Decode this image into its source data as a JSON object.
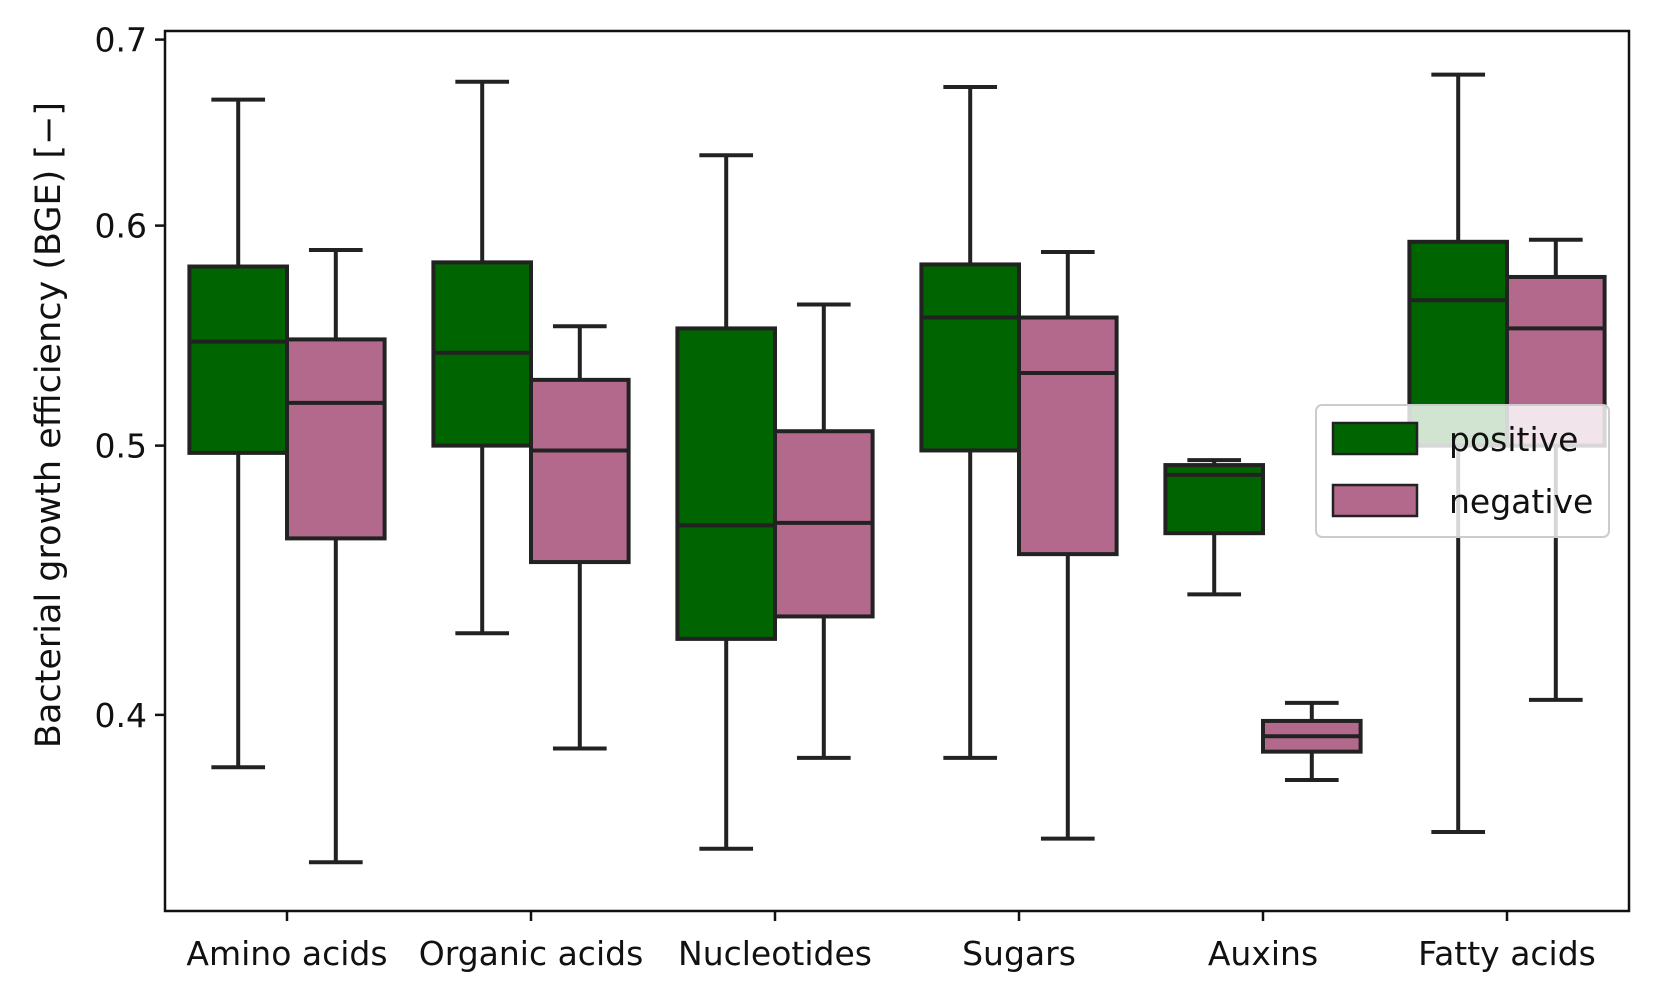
{
  "chart_data": {
    "type": "box",
    "title": "",
    "xlabel": "",
    "ylabel": "Bacterial growth efficiency (BGE) [−]",
    "yscale": "log",
    "ylim": [
      0.34,
      0.705
    ],
    "yticks": [
      0.4,
      0.5,
      0.6,
      0.7
    ],
    "ytick_labels": [
      "0.4",
      "0.5",
      "0.6",
      "0.7"
    ],
    "categories": [
      "Amino acids",
      "Organic acids",
      "Nucleotides",
      "Sugars",
      "Auxins",
      "Fatty acids"
    ],
    "legend": {
      "position": "right",
      "entries": [
        "positive",
        "negative"
      ]
    },
    "series": [
      {
        "name": "positive",
        "color": "#006400",
        "boxes": [
          {
            "whislo": 0.383,
            "q1": 0.497,
            "median": 0.545,
            "q3": 0.58,
            "whishi": 0.666
          },
          {
            "whislo": 0.428,
            "q1": 0.5,
            "median": 0.54,
            "q3": 0.582,
            "whishi": 0.676
          },
          {
            "whislo": 0.358,
            "q1": 0.426,
            "median": 0.468,
            "q3": 0.551,
            "whishi": 0.636
          },
          {
            "whislo": 0.386,
            "q1": 0.498,
            "median": 0.556,
            "q3": 0.581,
            "whishi": 0.673
          },
          {
            "whislo": 0.442,
            "q1": 0.465,
            "median": 0.488,
            "q3": 0.492,
            "whishi": 0.494
          },
          {
            "whislo": 0.363,
            "q1": 0.5,
            "median": 0.564,
            "q3": 0.592,
            "whishi": 0.68
          }
        ]
      },
      {
        "name": "negative",
        "color": "#b3698b",
        "boxes": [
          {
            "whislo": 0.354,
            "q1": 0.463,
            "median": 0.518,
            "q3": 0.546,
            "whishi": 0.588
          },
          {
            "whislo": 0.389,
            "q1": 0.454,
            "median": 0.498,
            "q3": 0.528,
            "whishi": 0.552
          },
          {
            "whislo": 0.386,
            "q1": 0.434,
            "median": 0.469,
            "q3": 0.506,
            "whishi": 0.562
          },
          {
            "whislo": 0.361,
            "q1": 0.457,
            "median": 0.531,
            "q3": 0.556,
            "whishi": 0.587
          },
          {
            "whislo": 0.379,
            "q1": 0.388,
            "median": 0.393,
            "q3": 0.398,
            "whishi": 0.404
          },
          {
            "whislo": 0.405,
            "q1": 0.5,
            "median": 0.551,
            "q3": 0.575,
            "whishi": 0.593
          }
        ]
      }
    ]
  }
}
